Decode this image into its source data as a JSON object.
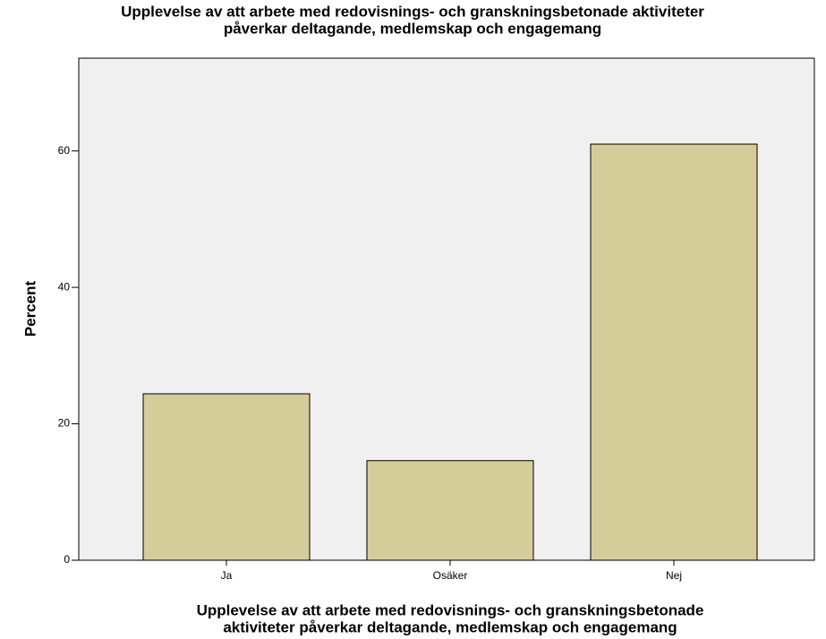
{
  "chart_data": {
    "type": "bar",
    "title": [
      "Upplevelse av att arbete med redovisnings- och granskningsbetonade aktiviteter",
      "påverkar deltagande, medlemskap och engagemang"
    ],
    "x_label": [
      "Upplevelse av att arbete med redovisnings- och granskningsbetonade",
      "aktiviteter påverkar deltagande, medlemskap och engagemang"
    ],
    "y_label": "Percent",
    "categories": [
      "Ja",
      "Osäker",
      "Nej"
    ],
    "values": [
      24.4,
      14.6,
      61.0
    ],
    "color": "#d4cd99",
    "ylim": [
      0,
      73.6
    ],
    "yticks": [
      0,
      20,
      40,
      60
    ],
    "grid": false
  }
}
